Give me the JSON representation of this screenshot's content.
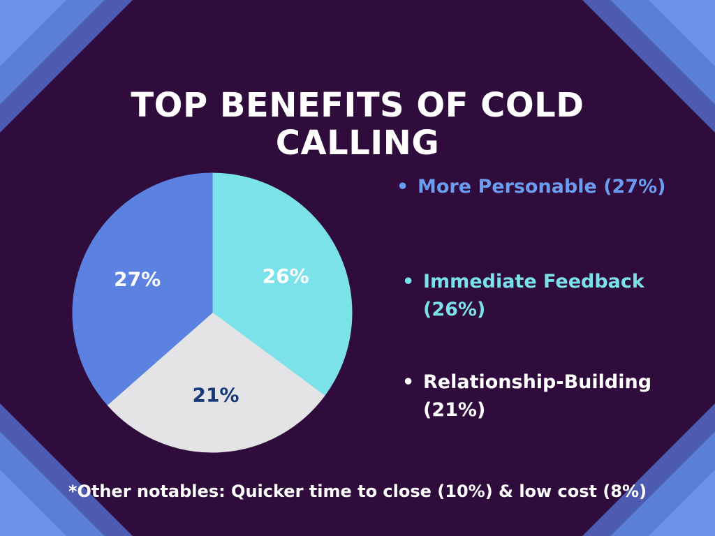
{
  "title": "TOP BENEFITS OF COLD CALLING",
  "chart_data": {
    "type": "pie",
    "slices": [
      {
        "label": "More Personable",
        "value": 27,
        "value_label": "27%",
        "color": "#5b82e0",
        "label_color": "#ffffff"
      },
      {
        "label": "Immediate Feedback",
        "value": 26,
        "value_label": "26%",
        "color": "#7ae2e8",
        "label_color": "#ffffff"
      },
      {
        "label": "Relationship-Building",
        "value": 21,
        "value_label": "21%",
        "color": "#e4e4e6",
        "label_color": "#163a78"
      }
    ]
  },
  "legend": [
    {
      "text": "More Personable (27%)",
      "color": "#6b9cf0"
    },
    {
      "text": "Immediate Feedback (26%)",
      "color": "#7ae0ea"
    },
    {
      "text": "Relationship-Building (21%)",
      "color": "#ffffff"
    }
  ],
  "footnote": "*Other notables:  Quicker time to close (10%) & low cost (8%)",
  "colors": {
    "background": "#300c3c",
    "corner_stripe_light": "#5b7fd6",
    "corner_stripe_mid": "#4f5cb3",
    "corner_stripe_dark": "#43438f"
  }
}
